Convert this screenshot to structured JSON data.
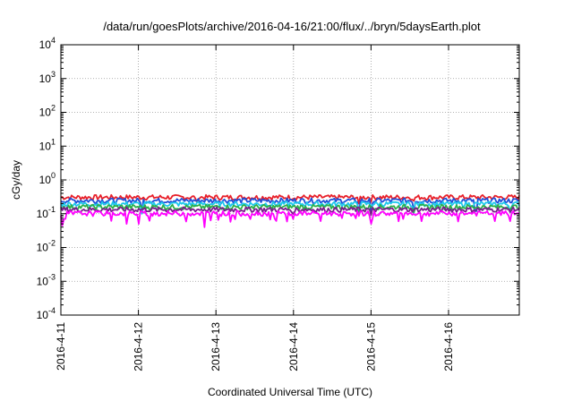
{
  "chart_data": {
    "type": "line",
    "title": "/data/run/goesPlots/archive/2016-04-16/21:00/flux/../bryn/5daysEarth.plot",
    "xlabel": "Coordinated Universal Time (UTC)",
    "ylabel": "cGy/day",
    "y_scale": "log",
    "ylim": [
      0.0001,
      10000
    ],
    "xlim": [
      "2016-04-11",
      "2016-04-16 21:00"
    ],
    "grid": true,
    "legend": "none",
    "y_ticks": [
      {
        "base": "10",
        "exp": "-4",
        "value": 0.0001
      },
      {
        "base": "10",
        "exp": "-3",
        "value": 0.001
      },
      {
        "base": "10",
        "exp": "-2",
        "value": 0.01
      },
      {
        "base": "10",
        "exp": "-1",
        "value": 0.1
      },
      {
        "base": "10",
        "exp": "0",
        "value": 1
      },
      {
        "base": "10",
        "exp": "1",
        "value": 10
      },
      {
        "base": "10",
        "exp": "2",
        "value": 100
      },
      {
        "base": "10",
        "exp": "3",
        "value": 1000
      },
      {
        "base": "10",
        "exp": "4",
        "value": 10000
      }
    ],
    "x_ticks": [
      "2016-4-11",
      "2016-4-12",
      "2016-4-13",
      "2016-4-14",
      "2016-4-15",
      "2016-4-16"
    ],
    "series": [
      {
        "color": "#e8202a",
        "base_value": 0.3,
        "dips": [
          [
            1.75,
            0.22
          ],
          [
            3.85,
            0.2
          ],
          [
            4.0,
            0.22
          ],
          [
            4.55,
            0.24
          ]
        ]
      },
      {
        "color": "#1f4fd8",
        "base_value": 0.24,
        "dips": [
          [
            1.05,
            0.12
          ],
          [
            3.85,
            0.1
          ],
          [
            4.0,
            0.11
          ],
          [
            4.55,
            0.12
          ],
          [
            5.35,
            0.12
          ]
        ]
      },
      {
        "color": "#1ec8ec",
        "base_value": 0.19,
        "dips": [
          [
            1.05,
            0.1
          ],
          [
            3.85,
            0.09
          ],
          [
            4.55,
            0.1
          ],
          [
            5.8,
            0.11
          ]
        ]
      },
      {
        "color": "#2cb04a",
        "base_value": 0.155,
        "dips": [
          [
            3.85,
            0.1
          ],
          [
            4.55,
            0.11
          ]
        ]
      },
      {
        "color": "#7a1e8c",
        "base_value": 0.13,
        "dips": [
          [
            3.0,
            0.1
          ],
          [
            4.0,
            0.09
          ]
        ]
      },
      {
        "color": "#ff00ff",
        "base_value": 0.1,
        "dips": [
          [
            0.05,
            0.07
          ],
          [
            0.02,
            0.045
          ],
          [
            1.0,
            0.05
          ],
          [
            0.85,
            0.05
          ],
          [
            1.85,
            0.04
          ],
          [
            3.0,
            0.07
          ],
          [
            3.35,
            0.06
          ],
          [
            4.0,
            0.05
          ],
          [
            4.65,
            0.06
          ],
          [
            5.8,
            0.06
          ],
          [
            5.6,
            0.06
          ]
        ]
      }
    ]
  }
}
